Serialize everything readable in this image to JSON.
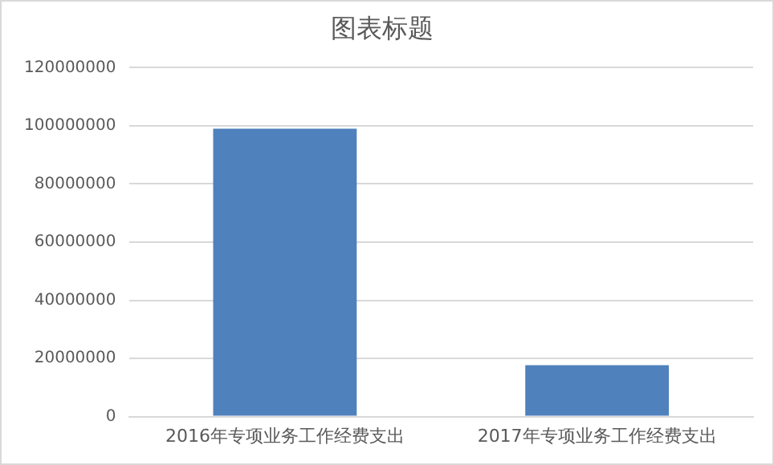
{
  "chart_data": {
    "type": "bar",
    "title": "图表标题",
    "categories": [
      "2016年专项业务工作经费支出",
      "2017年专项业务工作经费支出"
    ],
    "values": [
      99000000,
      17700000
    ],
    "color": "#4f81bd",
    "ylim": [
      0,
      120000000
    ],
    "yticks": [
      0,
      20000000,
      40000000,
      60000000,
      80000000,
      100000000,
      120000000
    ],
    "grid": "y"
  }
}
